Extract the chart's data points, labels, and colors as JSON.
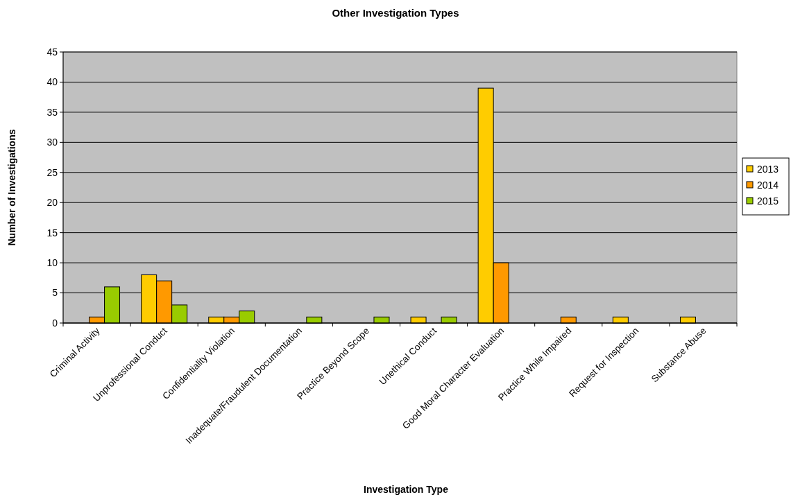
{
  "chart_data": {
    "type": "bar",
    "title": "Other Investigation Types",
    "xlabel": "Investigation Type",
    "ylabel": "Number of Investigations",
    "categories": [
      "Criminal Activity",
      "Unprofessional Conduct",
      "Confidentiality Violation",
      "Inadequate/Fraudulent Documentation",
      "Practice Beyond Scope",
      "Unethical Conduct",
      "Good Moral Character Evaluation",
      "Practice While Impaired",
      "Request for Inspection",
      "Substance Abuse"
    ],
    "series": [
      {
        "name": "2013",
        "color": "#ffcc00",
        "values": [
          0,
          8,
          1,
          0,
          0,
          1,
          39,
          0,
          1,
          1
        ]
      },
      {
        "name": "2014",
        "color": "#ff9900",
        "values": [
          1,
          7,
          1,
          0,
          0,
          0,
          10,
          1,
          0,
          0
        ]
      },
      {
        "name": "2015",
        "color": "#99cc00",
        "values": [
          6,
          3,
          2,
          1,
          1,
          1,
          0,
          0,
          0,
          0
        ]
      }
    ],
    "ylim": [
      0,
      45
    ],
    "yticks": [
      0,
      5,
      10,
      15,
      20,
      25,
      30,
      35,
      40,
      45
    ],
    "grid": "y",
    "legend": "right"
  }
}
